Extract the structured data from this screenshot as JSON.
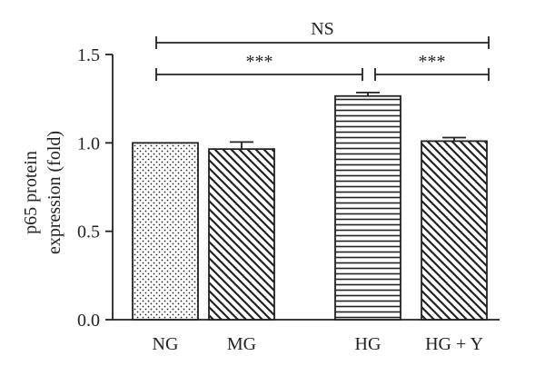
{
  "chart_data": {
    "type": "bar",
    "categories": [
      "NG",
      "MG",
      "HG",
      "HG + Y"
    ],
    "values": [
      1.0,
      0.965,
      1.265,
      1.01
    ],
    "errors": [
      0.0,
      0.04,
      0.02,
      0.02
    ],
    "patterns": [
      "dots",
      "diagonal-down-right",
      "horizontal",
      "diagonal-down-right"
    ],
    "ylabel_lines": [
      "p65 protein",
      "expression (fold)"
    ],
    "ylim": [
      0,
      1.5
    ],
    "yticks": [
      0.0,
      0.5,
      1.0,
      1.5
    ],
    "ytick_labels": [
      "0.0",
      "0.5",
      "1.0",
      "1.5"
    ],
    "grid": false,
    "significance": [
      {
        "from": 0,
        "to": 3,
        "label": "NS"
      },
      {
        "from": 0,
        "to": 2,
        "label": "***"
      },
      {
        "from": 2,
        "to": 3,
        "label": "***"
      }
    ]
  }
}
